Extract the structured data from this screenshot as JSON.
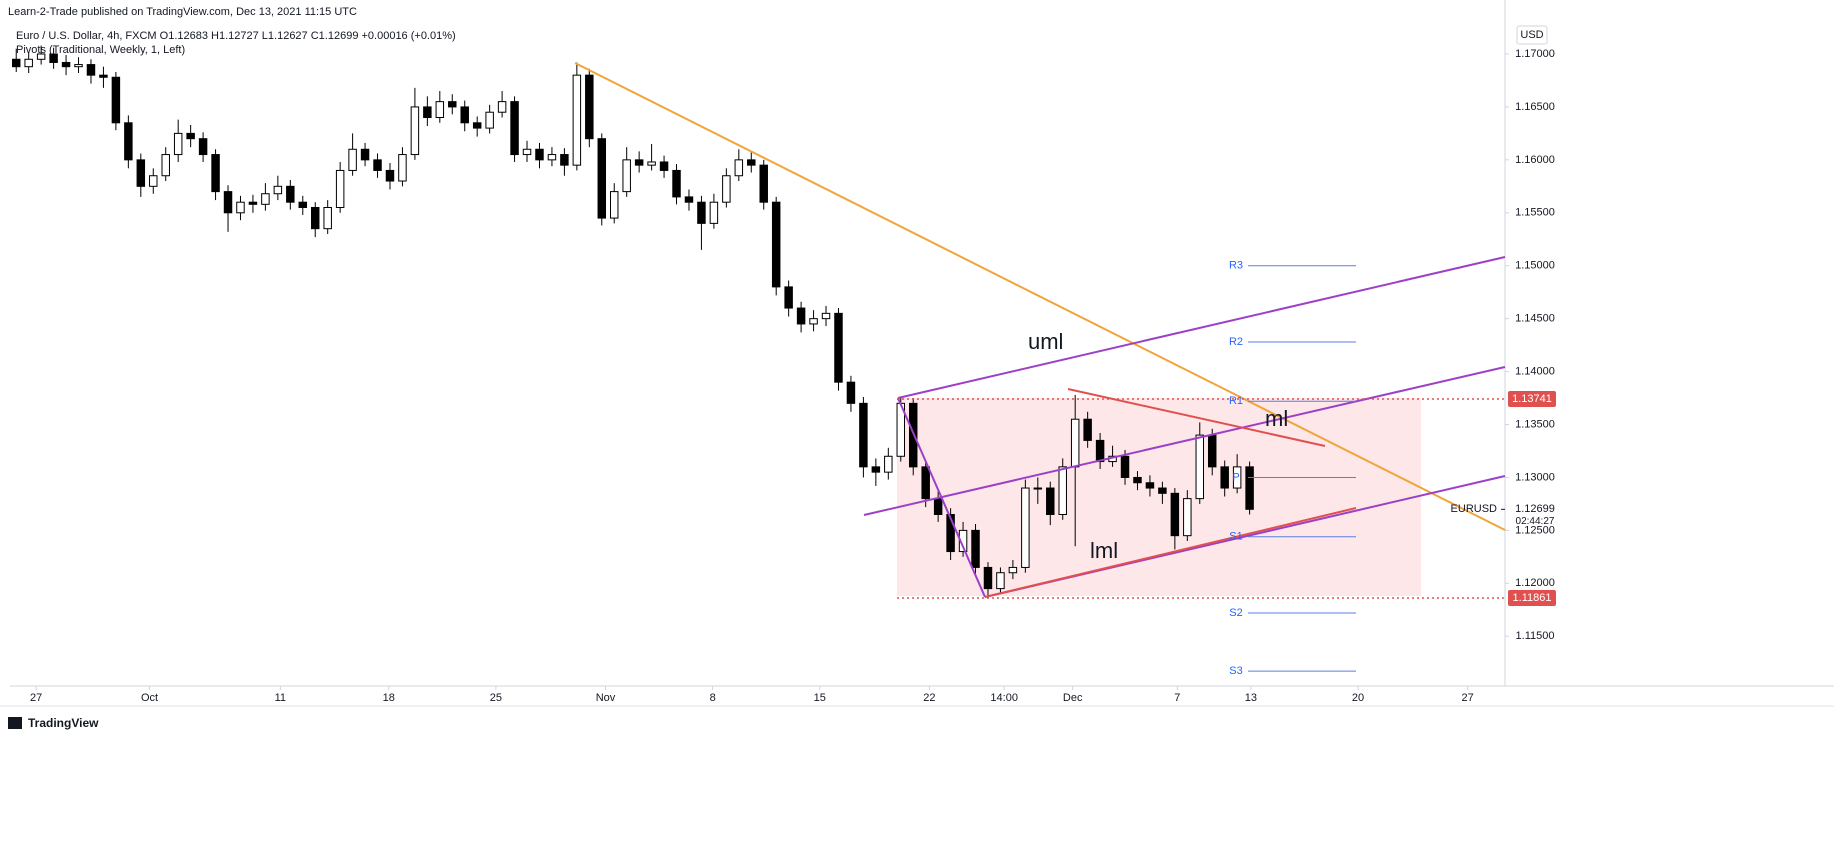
{
  "header": {
    "publisher": "Learn-2-Trade published on TradingView.com, Dec 13, 2021 11:15 UTC",
    "symbol_line": "Euro / U.S. Dollar, 4h, FXCM  O1.12683 H1.12727 L1.12627 C1.12699 +0.00016 (+0.01%)",
    "indicator": "Pivots (Traditional, Weekly, 1, Left)"
  },
  "footer": {
    "brand": "TradingView"
  },
  "chart_data": {
    "type": "candlestick",
    "currency": "USD",
    "symbol": "EURUSD",
    "countdown": "02:44:27",
    "last_price": {
      "value": 1.12699,
      "label": "1.12699"
    },
    "levels": [
      {
        "value": 1.13741,
        "label": "1.13741"
      },
      {
        "value": 1.11861,
        "label": "1.11861"
      }
    ],
    "pivots": [
      {
        "name": "R3",
        "value": 1.15
      },
      {
        "name": "R2",
        "value": 1.1428
      },
      {
        "name": "R1",
        "value": 1.1372
      },
      {
        "name": "P",
        "value": 1.13
      },
      {
        "name": "S1",
        "value": 1.1244
      },
      {
        "name": "S2",
        "value": 1.1172
      },
      {
        "name": "S3",
        "value": 1.1117
      }
    ],
    "annotations": [
      "uml",
      "ml",
      "lml"
    ],
    "ylim": [
      1.1103,
      1.1751
    ],
    "yticks": [
      {
        "value": 1.17,
        "label": "1.17000"
      },
      {
        "value": 1.165,
        "label": "1.16500"
      },
      {
        "value": 1.16,
        "label": "1.16000"
      },
      {
        "value": 1.155,
        "label": "1.15500"
      },
      {
        "value": 1.15,
        "label": "1.15000"
      },
      {
        "value": 1.145,
        "label": "1.14500"
      },
      {
        "value": 1.14,
        "label": "1.14000"
      },
      {
        "value": 1.135,
        "label": "1.13500"
      },
      {
        "value": 1.13,
        "label": "1.13000"
      },
      {
        "value": 1.125,
        "label": "1.12500"
      },
      {
        "value": 1.12,
        "label": "1.12000"
      },
      {
        "value": 1.115,
        "label": "1.11500"
      }
    ],
    "xlim": [
      0,
      120
    ],
    "xticks": [
      {
        "value": 2.1,
        "label": "27"
      },
      {
        "value": 11.2,
        "label": "Oct"
      },
      {
        "value": 21.7,
        "label": "11"
      },
      {
        "value": 30.4,
        "label": "18"
      },
      {
        "value": 39,
        "label": "25"
      },
      {
        "value": 47.8,
        "label": "Nov"
      },
      {
        "value": 56.4,
        "label": "8"
      },
      {
        "value": 65,
        "label": "15"
      },
      {
        "value": 73.8,
        "label": "22"
      },
      {
        "value": 79.8,
        "label": "14:00"
      },
      {
        "value": 85.3,
        "label": "Dec"
      },
      {
        "value": 93.7,
        "label": "7"
      },
      {
        "value": 99.6,
        "label": "13"
      },
      {
        "value": 108.2,
        "label": "20"
      },
      {
        "value": 117,
        "label": "27"
      }
    ],
    "grid": false,
    "up_color": "#ffffff",
    "down_color": "#000000",
    "wick_color": "#000000",
    "values": [
      [
        1.1695,
        1.1705,
        1.1683,
        1.1688
      ],
      [
        1.1688,
        1.1702,
        1.1682,
        1.1695
      ],
      [
        1.1695,
        1.1708,
        1.169,
        1.17
      ],
      [
        1.17,
        1.1706,
        1.1686,
        1.1692
      ],
      [
        1.1692,
        1.1699,
        1.168,
        1.1688
      ],
      [
        1.1688,
        1.1697,
        1.1682,
        1.169
      ],
      [
        1.169,
        1.1695,
        1.1672,
        1.168
      ],
      [
        1.168,
        1.1688,
        1.1668,
        1.1678
      ],
      [
        1.1678,
        1.1683,
        1.1628,
        1.1635
      ],
      [
        1.1635,
        1.1642,
        1.1592,
        1.16
      ],
      [
        1.16,
        1.1606,
        1.1565,
        1.1575
      ],
      [
        1.1575,
        1.1592,
        1.1568,
        1.1585
      ],
      [
        1.1585,
        1.1612,
        1.158,
        1.1605
      ],
      [
        1.1605,
        1.1638,
        1.1598,
        1.1625
      ],
      [
        1.1625,
        1.1633,
        1.1612,
        1.162
      ],
      [
        1.162,
        1.1626,
        1.1598,
        1.1605
      ],
      [
        1.1605,
        1.161,
        1.1562,
        1.157
      ],
      [
        1.157,
        1.1576,
        1.1532,
        1.155
      ],
      [
        1.155,
        1.1566,
        1.1543,
        1.156
      ],
      [
        1.156,
        1.1567,
        1.155,
        1.1558
      ],
      [
        1.1558,
        1.1578,
        1.1552,
        1.1568
      ],
      [
        1.1568,
        1.1585,
        1.1562,
        1.1575
      ],
      [
        1.1575,
        1.1581,
        1.1553,
        1.156
      ],
      [
        1.156,
        1.1566,
        1.1548,
        1.1555
      ],
      [
        1.1555,
        1.156,
        1.1527,
        1.1535
      ],
      [
        1.1535,
        1.1562,
        1.153,
        1.1555
      ],
      [
        1.1555,
        1.1598,
        1.155,
        1.159
      ],
      [
        1.159,
        1.1625,
        1.1585,
        1.161
      ],
      [
        1.161,
        1.1616,
        1.1594,
        1.16
      ],
      [
        1.16,
        1.1606,
        1.1583,
        1.159
      ],
      [
        1.159,
        1.1597,
        1.1572,
        1.158
      ],
      [
        1.158,
        1.1612,
        1.1575,
        1.1605
      ],
      [
        1.1605,
        1.1668,
        1.16,
        1.165
      ],
      [
        1.165,
        1.166,
        1.1632,
        1.164
      ],
      [
        1.164,
        1.1665,
        1.1635,
        1.1655
      ],
      [
        1.1655,
        1.1662,
        1.1643,
        1.165
      ],
      [
        1.165,
        1.1656,
        1.1627,
        1.1635
      ],
      [
        1.1635,
        1.1641,
        1.1622,
        1.163
      ],
      [
        1.163,
        1.1652,
        1.1625,
        1.1645
      ],
      [
        1.1645,
        1.1665,
        1.164,
        1.1655
      ],
      [
        1.1655,
        1.166,
        1.1598,
        1.1605
      ],
      [
        1.1605,
        1.1618,
        1.1598,
        1.161
      ],
      [
        1.161,
        1.1616,
        1.1592,
        1.16
      ],
      [
        1.16,
        1.1612,
        1.1594,
        1.1605
      ],
      [
        1.1605,
        1.1611,
        1.1585,
        1.1595
      ],
      [
        1.1595,
        1.1692,
        1.159,
        1.168
      ],
      [
        1.168,
        1.1686,
        1.1612,
        1.162
      ],
      [
        1.162,
        1.1625,
        1.1538,
        1.1545
      ],
      [
        1.1545,
        1.1578,
        1.154,
        1.157
      ],
      [
        1.157,
        1.1612,
        1.1565,
        1.16
      ],
      [
        1.16,
        1.1608,
        1.1588,
        1.1595
      ],
      [
        1.1595,
        1.1615,
        1.159,
        1.1598
      ],
      [
        1.1598,
        1.1604,
        1.1583,
        1.159
      ],
      [
        1.159,
        1.1596,
        1.1558,
        1.1565
      ],
      [
        1.1565,
        1.1572,
        1.1552,
        1.156
      ],
      [
        1.156,
        1.1566,
        1.1515,
        1.154
      ],
      [
        1.154,
        1.1568,
        1.1535,
        1.156
      ],
      [
        1.156,
        1.1592,
        1.1555,
        1.1585
      ],
      [
        1.1585,
        1.161,
        1.158,
        1.16
      ],
      [
        1.16,
        1.1607,
        1.1588,
        1.1595
      ],
      [
        1.1595,
        1.16,
        1.1553,
        1.156
      ],
      [
        1.156,
        1.1565,
        1.1472,
        1.148
      ],
      [
        1.148,
        1.1486,
        1.1452,
        1.146
      ],
      [
        1.146,
        1.1466,
        1.1437,
        1.1445
      ],
      [
        1.1445,
        1.1458,
        1.1438,
        1.145
      ],
      [
        1.145,
        1.1462,
        1.1443,
        1.1455
      ],
      [
        1.1455,
        1.146,
        1.1382,
        1.139
      ],
      [
        1.139,
        1.1396,
        1.1362,
        1.137
      ],
      [
        1.137,
        1.1376,
        1.13,
        1.131
      ],
      [
        1.131,
        1.1318,
        1.1292,
        1.1305
      ],
      [
        1.1305,
        1.1328,
        1.1298,
        1.132
      ],
      [
        1.132,
        1.1376,
        1.1315,
        1.137
      ],
      [
        1.137,
        1.1375,
        1.1302,
        1.131
      ],
      [
        1.131,
        1.1316,
        1.1272,
        1.128
      ],
      [
        1.128,
        1.1287,
        1.1258,
        1.1265
      ],
      [
        1.1265,
        1.1271,
        1.1222,
        1.123
      ],
      [
        1.123,
        1.1258,
        1.1225,
        1.125
      ],
      [
        1.125,
        1.1256,
        1.1208,
        1.1215
      ],
      [
        1.1215,
        1.122,
        1.1186,
        1.1195
      ],
      [
        1.1195,
        1.1215,
        1.119,
        1.121
      ],
      [
        1.121,
        1.1222,
        1.1204,
        1.1215
      ],
      [
        1.1215,
        1.1298,
        1.121,
        1.129
      ],
      [
        1.129,
        1.13,
        1.1275,
        1.129
      ],
      [
        1.129,
        1.1296,
        1.1255,
        1.1265
      ],
      [
        1.1265,
        1.1318,
        1.126,
        1.131
      ],
      [
        1.131,
        1.1378,
        1.1235,
        1.1355
      ],
      [
        1.1355,
        1.1362,
        1.1328,
        1.1335
      ],
      [
        1.1335,
        1.1342,
        1.1308,
        1.1315
      ],
      [
        1.1315,
        1.133,
        1.131,
        1.132
      ],
      [
        1.132,
        1.1326,
        1.1293,
        1.13
      ],
      [
        1.13,
        1.1306,
        1.1288,
        1.1295
      ],
      [
        1.1295,
        1.1302,
        1.1282,
        1.129
      ],
      [
        1.129,
        1.1296,
        1.1275,
        1.1285
      ],
      [
        1.1285,
        1.129,
        1.1232,
        1.1245
      ],
      [
        1.1245,
        1.1288,
        1.124,
        1.128
      ],
      [
        1.128,
        1.1352,
        1.1275,
        1.134
      ],
      [
        1.134,
        1.1346,
        1.1302,
        1.131
      ],
      [
        1.131,
        1.1316,
        1.1282,
        1.129
      ],
      [
        1.129,
        1.1322,
        1.1285,
        1.131
      ],
      [
        1.131,
        1.1315,
        1.1265,
        1.12699
      ]
    ]
  }
}
